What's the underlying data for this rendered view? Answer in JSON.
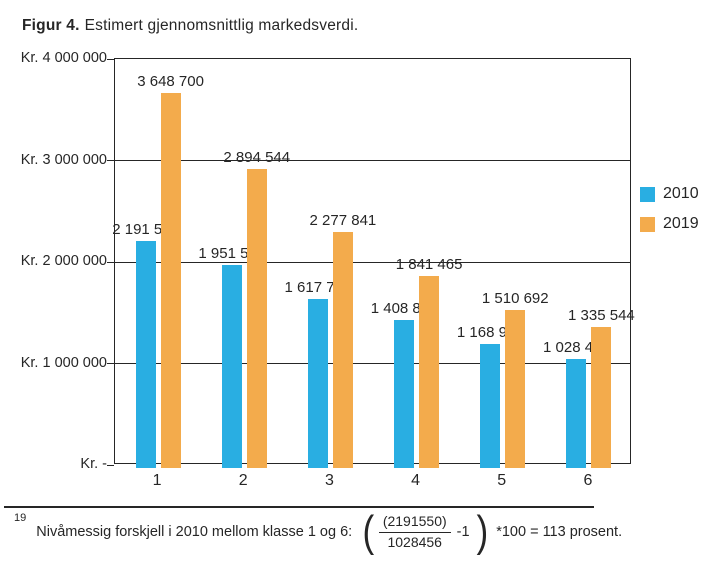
{
  "title": {
    "prefix": "Figur 4.",
    "text": "Estimert gjennomsnittlig markedsverdi."
  },
  "chart_data": {
    "type": "bar",
    "title": "Figur 4. Estimert gjennomsnittlig markedsverdi.",
    "categories": [
      "1",
      "2",
      "3",
      "4",
      "5",
      "6"
    ],
    "series": [
      {
        "name": "2010",
        "color": "#29aee2",
        "values": [
          2191550,
          1951520,
          1617793,
          1408851,
          1168955,
          1028456
        ],
        "value_labels": [
          "2 191 550",
          "1 951 520",
          "1 617 793",
          "1 408 851",
          "1 168 955",
          "1 028 456"
        ]
      },
      {
        "name": "2019",
        "color": "#f3ab4c",
        "values": [
          3648700,
          2894544,
          2277841,
          1841465,
          1510692,
          1335544
        ],
        "value_labels": [
          "3 648 700",
          "2 894 544",
          "2 277 841",
          "1 841 465",
          "1 510 692",
          "1 335 544"
        ]
      }
    ],
    "y_ticks": [
      {
        "label": "Kr. 4 000 000",
        "value": 4000000
      },
      {
        "label": "Kr. 3 000 000",
        "value": 3000000
      },
      {
        "label": "Kr. 2 000 000",
        "value": 2000000
      },
      {
        "label": "Kr. 1 000 000",
        "value": 1000000
      },
      {
        "label": "Kr.  -",
        "value": 0
      }
    ],
    "ylim": [
      0,
      4000000
    ],
    "xlabel": "",
    "ylabel": "Kr.",
    "grid": true,
    "legend_position": "right"
  },
  "footnote": {
    "marker": "19",
    "text": "Nivåmessig forskjell i 2010 mellom klasse 1 og 6:",
    "formula": {
      "lparen": "(",
      "numerator": "(2191550)",
      "denominator": "1028456",
      "inside_suffix": "-1",
      "rparen": ")",
      "outside": "*100 = 113 prosent."
    }
  }
}
